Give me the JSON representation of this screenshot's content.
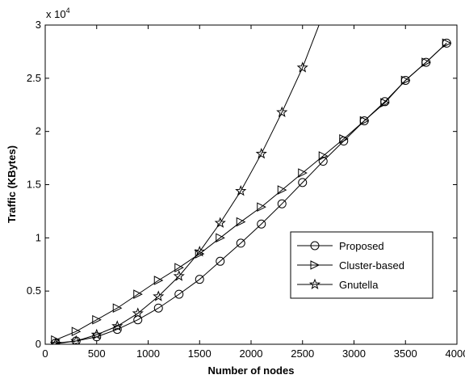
{
  "chart_data": {
    "type": "line",
    "title": "",
    "xlabel": "Number of nodes",
    "ylabel": "Traffic (KBytes)",
    "xlim": [
      0,
      4000
    ],
    "ylim": [
      0,
      30000
    ],
    "x_ticks": [
      0,
      500,
      1000,
      1500,
      2000,
      2500,
      3000,
      3500,
      4000
    ],
    "y_ticks": [
      0,
      5000,
      10000,
      15000,
      20000,
      25000,
      30000
    ],
    "y_tick_labels": [
      "0",
      "0.5",
      "1",
      "1.5",
      "2",
      "2.5",
      "3"
    ],
    "y_multiplier": "x 10",
    "y_multiplier_exp": "4",
    "grid": false,
    "legend_position": "center-right",
    "legend": [
      "Proposed",
      "Cluster-based",
      "Gnutella"
    ],
    "series": [
      {
        "name": "Proposed",
        "marker": "circle",
        "x": [
          100,
          300,
          500,
          700,
          900,
          1100,
          1300,
          1500,
          1700,
          1900,
          2100,
          2300,
          2500,
          2700,
          2900,
          3100,
          3300,
          3500,
          3700,
          3900
        ],
        "y": [
          100,
          300,
          700,
          1400,
          2300,
          3400,
          4700,
          6100,
          7800,
          9500,
          11300,
          13200,
          15200,
          17200,
          19100,
          21000,
          22800,
          24800,
          26500,
          28300
        ]
      },
      {
        "name": "Cluster-based",
        "marker": "triangle-right",
        "x": [
          100,
          300,
          500,
          700,
          900,
          1100,
          1300,
          1500,
          1700,
          1900,
          2100,
          2300,
          2500,
          2700,
          2900,
          3100,
          3300,
          3500,
          3700,
          3900
        ],
        "y": [
          400,
          1200,
          2300,
          3400,
          4700,
          6000,
          7200,
          8500,
          10000,
          11500,
          12900,
          14500,
          16100,
          17700,
          19300,
          21000,
          22700,
          24800,
          26500,
          28300
        ]
      },
      {
        "name": "Gnutella",
        "marker": "star",
        "x": [
          100,
          300,
          500,
          700,
          900,
          1100,
          1300,
          1500,
          1700,
          1900,
          2100,
          2300,
          2500,
          2700
        ],
        "y": [
          50,
          300,
          900,
          1700,
          2900,
          4500,
          6400,
          8700,
          11400,
          14400,
          17900,
          21800,
          26000,
          31000
        ]
      }
    ]
  }
}
